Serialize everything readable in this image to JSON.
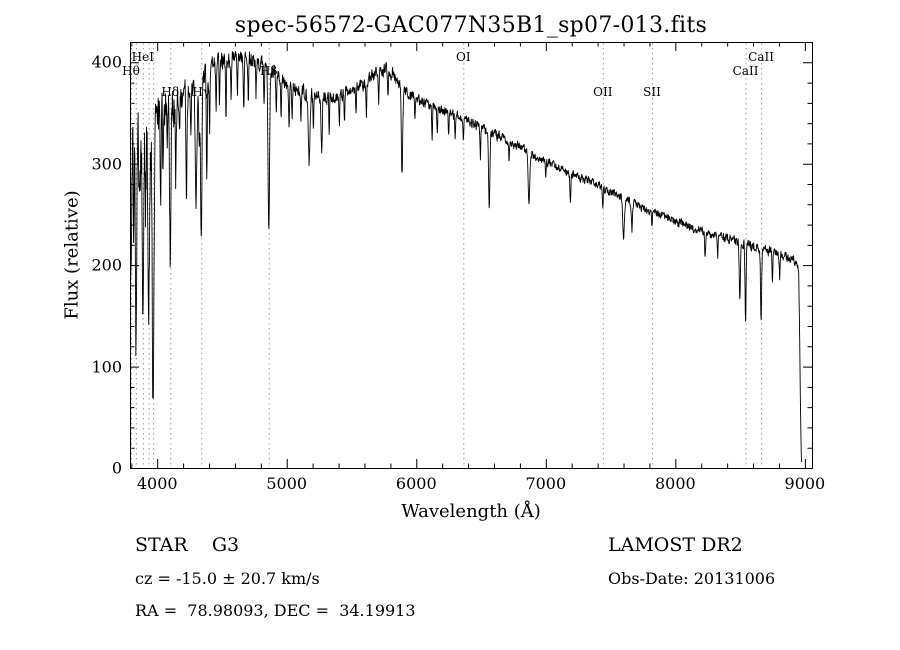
{
  "chart_data": {
    "type": "line",
    "title": "spec-56572-GAC077N35B1_sp07-013.fits",
    "xlabel": "Wavelength (Å)",
    "ylabel": "Flux (relative)",
    "xlim": [
      3790,
      9055
    ],
    "ylim": [
      0,
      420
    ],
    "x_ticks": [
      4000,
      5000,
      6000,
      7000,
      8000,
      9000
    ],
    "x_minor_step": 200,
    "y_ticks": [
      0,
      100,
      200,
      300,
      400
    ],
    "y_minor_step": 20,
    "grid": "off",
    "legend": "none",
    "line_color": "#000000",
    "feature_line_color": "#9a9a9a",
    "feature_line_style": "dotted",
    "feature_wavelengths": [
      3798,
      3835,
      3889,
      3934,
      3968,
      4101,
      4340,
      4861,
      6363,
      7440,
      7820,
      8542,
      8662
    ],
    "spectral_labels": [
      {
        "label": "HeI",
        "wavelength": 3889,
        "level": 1
      },
      {
        "label": "Hθ",
        "wavelength": 3798,
        "level": 2
      },
      {
        "label": "Hδ",
        "wavelength": 4101,
        "level": 3
      },
      {
        "label": "Hγ",
        "wavelength": 4340,
        "level": 3
      },
      {
        "label": "Hβ",
        "wavelength": 4861,
        "level": 2
      },
      {
        "label": "OI",
        "wavelength": 6363,
        "level": 1
      },
      {
        "label": "OII",
        "wavelength": 7440,
        "level": 3
      },
      {
        "label": "SII",
        "wavelength": 7820,
        "level": 3
      },
      {
        "label": "CaII",
        "wavelength": 8662,
        "level": 1
      },
      {
        "label": "CaII",
        "wavelength": 8542,
        "level": 2
      }
    ],
    "spectrum_model": {
      "sample_range": [
        3790,
        8976
      ],
      "sample_step": 2.5,
      "noise_seed": 20131006,
      "continuum": [
        [
          3790,
          310
        ],
        [
          3820,
          325
        ],
        [
          3850,
          330
        ],
        [
          3880,
          335
        ],
        [
          3910,
          338
        ],
        [
          3940,
          340
        ],
        [
          3970,
          342
        ],
        [
          4000,
          348
        ],
        [
          4060,
          356
        ],
        [
          4120,
          362
        ],
        [
          4180,
          368
        ],
        [
          4240,
          374
        ],
        [
          4300,
          380
        ],
        [
          4360,
          388
        ],
        [
          4420,
          396
        ],
        [
          4480,
          402
        ],
        [
          4540,
          406
        ],
        [
          4600,
          408
        ],
        [
          4660,
          406
        ],
        [
          4720,
          404
        ],
        [
          4780,
          401
        ],
        [
          4840,
          398
        ],
        [
          4900,
          390
        ],
        [
          4960,
          383
        ],
        [
          5020,
          379
        ],
        [
          5100,
          374
        ],
        [
          5200,
          369
        ],
        [
          5300,
          366
        ],
        [
          5400,
          368
        ],
        [
          5500,
          373
        ],
        [
          5600,
          380
        ],
        [
          5700,
          391
        ],
        [
          5760,
          394
        ],
        [
          5820,
          389
        ],
        [
          5880,
          379
        ],
        [
          5940,
          369
        ],
        [
          6000,
          364
        ],
        [
          6100,
          359
        ],
        [
          6200,
          354
        ],
        [
          6300,
          349
        ],
        [
          6400,
          342
        ],
        [
          6500,
          336
        ],
        [
          6600,
          330
        ],
        [
          6700,
          324
        ],
        [
          6800,
          317
        ],
        [
          6900,
          310
        ],
        [
          7000,
          303
        ],
        [
          7100,
          297
        ],
        [
          7200,
          291
        ],
        [
          7300,
          285
        ],
        [
          7400,
          279
        ],
        [
          7500,
          273
        ],
        [
          7600,
          266
        ],
        [
          7700,
          260
        ],
        [
          7800,
          254
        ],
        [
          7900,
          249
        ],
        [
          8000,
          244
        ],
        [
          8100,
          239
        ],
        [
          8200,
          234
        ],
        [
          8300,
          230
        ],
        [
          8400,
          227
        ],
        [
          8500,
          223
        ],
        [
          8600,
          219
        ],
        [
          8700,
          215
        ],
        [
          8800,
          211
        ],
        [
          8870,
          208
        ],
        [
          8930,
          204
        ],
        [
          8952,
          200
        ],
        [
          8960,
          130
        ],
        [
          8966,
          60
        ],
        [
          8972,
          8
        ],
        [
          8976,
          2
        ]
      ],
      "absorption_lines": [
        [
          3798,
          145,
          5
        ],
        [
          3820,
          90,
          3
        ],
        [
          3835,
          175,
          5
        ],
        [
          3860,
          80,
          3
        ],
        [
          3889,
          195,
          5
        ],
        [
          3910,
          90,
          3
        ],
        [
          3934,
          235,
          6
        ],
        [
          3968,
          225,
          6
        ],
        [
          4026,
          85,
          4
        ],
        [
          4045,
          55,
          3
        ],
        [
          4077,
          50,
          3
        ],
        [
          4101,
          150,
          5
        ],
        [
          4144,
          65,
          4
        ],
        [
          4172,
          45,
          3
        ],
        [
          4226,
          95,
          4
        ],
        [
          4260,
          55,
          3
        ],
        [
          4300,
          105,
          7
        ],
        [
          4325,
          70,
          4
        ],
        [
          4340,
          150,
          5
        ],
        [
          4383,
          95,
          4
        ],
        [
          4405,
          60,
          3
        ],
        [
          4455,
          55,
          3
        ],
        [
          4481,
          45,
          3
        ],
        [
          4531,
          55,
          3
        ],
        [
          4571,
          40,
          3
        ],
        [
          4620,
          35,
          3
        ],
        [
          4668,
          55,
          3
        ],
        [
          4703,
          40,
          3
        ],
        [
          4762,
          35,
          3
        ],
        [
          4825,
          45,
          3
        ],
        [
          4861,
          158,
          6
        ],
        [
          4920,
          40,
          3
        ],
        [
          4957,
          35,
          3
        ],
        [
          5018,
          45,
          3
        ],
        [
          5041,
          35,
          3
        ],
        [
          5110,
          30,
          3
        ],
        [
          5173,
          65,
          6
        ],
        [
          5206,
          40,
          3
        ],
        [
          5270,
          55,
          4
        ],
        [
          5328,
          40,
          3
        ],
        [
          5406,
          30,
          3
        ],
        [
          5446,
          28,
          3
        ],
        [
          5535,
          28,
          3
        ],
        [
          5615,
          32,
          3
        ],
        [
          5710,
          25,
          3
        ],
        [
          5782,
          25,
          3
        ],
        [
          5890,
          88,
          5
        ],
        [
          5990,
          20,
          3
        ],
        [
          6122,
          30,
          3
        ],
        [
          6162,
          28,
          3
        ],
        [
          6250,
          22,
          3
        ],
        [
          6300,
          28,
          3
        ],
        [
          6363,
          20,
          3
        ],
        [
          6495,
          28,
          3
        ],
        [
          6563,
          78,
          5
        ],
        [
          6717,
          20,
          3
        ],
        [
          6870,
          48,
          6
        ],
        [
          7000,
          18,
          3
        ],
        [
          7190,
          25,
          4
        ],
        [
          7440,
          18,
          3
        ],
        [
          7600,
          42,
          6
        ],
        [
          7665,
          28,
          4
        ],
        [
          7820,
          15,
          3
        ],
        [
          8230,
          25,
          4
        ],
        [
          8327,
          22,
          3
        ],
        [
          8498,
          55,
          4
        ],
        [
          8542,
          78,
          4
        ],
        [
          8662,
          70,
          4
        ],
        [
          8750,
          28,
          3
        ],
        [
          8806,
          22,
          3
        ]
      ],
      "noise_regions": [
        [
          3790,
          3980,
          52,
          -14
        ],
        [
          3980,
          4150,
          26,
          -8
        ],
        [
          4150,
          4400,
          15,
          -5
        ],
        [
          4400,
          4800,
          10,
          -2
        ],
        [
          4800,
          5300,
          8,
          -2
        ],
        [
          5300,
          6000,
          7,
          -1
        ],
        [
          6000,
          6800,
          5.5,
          -1
        ],
        [
          6800,
          7600,
          4.5,
          -1
        ],
        [
          7600,
          8400,
          4.5,
          -1
        ],
        [
          8400,
          8980,
          5.5,
          -1
        ]
      ]
    }
  },
  "footer": {
    "object_class": "STAR    G3",
    "survey": "LAMOST DR2",
    "cz": "cz = -15.0 ± 20.7 km/s",
    "obs_date": "Obs-Date: 20131006",
    "ra_dec": "RA =  78.98093, DEC =  34.19913"
  }
}
